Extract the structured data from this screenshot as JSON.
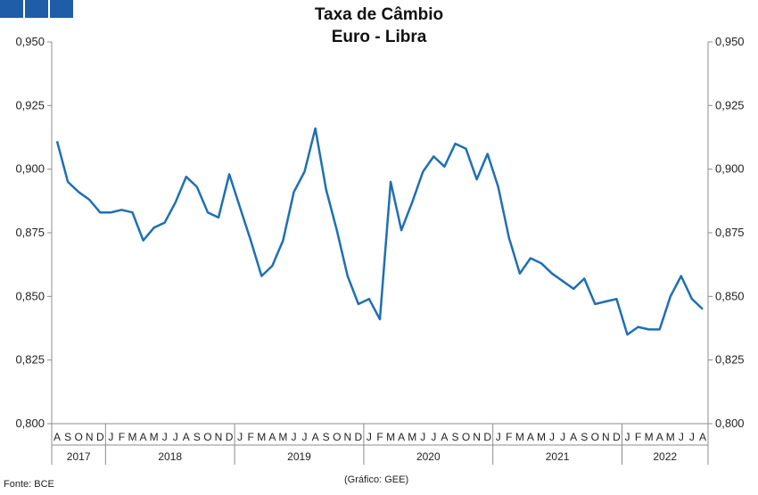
{
  "header": {
    "title_line_1": "Taxa de Câmbio",
    "title_line_2": "Euro - Libra",
    "brand_color": "#1f5da8"
  },
  "footer": {
    "source": "Fonte: BCE",
    "credit": "(Gráfico: GEE)"
  },
  "chart_data": {
    "type": "line",
    "title": "Taxa de Câmbio\nEuro - Libra",
    "xlabel": "",
    "ylabel": "",
    "ylim": [
      0.8,
      0.95
    ],
    "y_ticks": [
      "0,800",
      "0,825",
      "0,850",
      "0,875",
      "0,900",
      "0,925",
      "0,950"
    ],
    "grid": false,
    "axes": "left-and-right",
    "line_color": "#1f6fb4",
    "x_month_labels": [
      "A",
      "S",
      "O",
      "N",
      "D",
      "J",
      "F",
      "M",
      "A",
      "M",
      "J",
      "J",
      "A",
      "S",
      "O",
      "N",
      "D",
      "J",
      "F",
      "M",
      "A",
      "M",
      "J",
      "J",
      "A",
      "S",
      "O",
      "N",
      "D",
      "J",
      "F",
      "M",
      "A",
      "M",
      "J",
      "J",
      "A",
      "S",
      "O",
      "N",
      "D",
      "J",
      "F",
      "M",
      "A",
      "M",
      "J",
      "J",
      "A",
      "S",
      "O",
      "N",
      "D",
      "J",
      "F",
      "M",
      "A",
      "M",
      "J",
      "J",
      "A"
    ],
    "year_groups": [
      {
        "label": "2017",
        "count": 5
      },
      {
        "label": "2018",
        "count": 12
      },
      {
        "label": "2019",
        "count": 12
      },
      {
        "label": "2020",
        "count": 12
      },
      {
        "label": "2021",
        "count": 12
      },
      {
        "label": "2022",
        "count": 8
      }
    ],
    "series": [
      {
        "values": [
          0.911,
          0.895,
          0.891,
          0.888,
          0.883,
          0.883,
          0.884,
          0.883,
          0.872,
          0.877,
          0.879,
          0.887,
          0.897,
          0.893,
          0.883,
          0.881,
          0.898,
          0.885,
          0.872,
          0.858,
          0.862,
          0.872,
          0.891,
          0.899,
          0.916,
          0.892,
          0.876,
          0.858,
          0.847,
          0.849,
          0.841,
          0.895,
          0.876,
          0.887,
          0.899,
          0.905,
          0.901,
          0.91,
          0.908,
          0.896,
          0.906,
          0.893,
          0.873,
          0.859,
          0.865,
          0.863,
          0.859,
          0.856,
          0.853,
          0.857,
          0.847,
          0.848,
          0.849,
          0.835,
          0.838,
          0.837,
          0.837,
          0.85,
          0.858,
          0.849,
          0.845
        ]
      }
    ]
  }
}
